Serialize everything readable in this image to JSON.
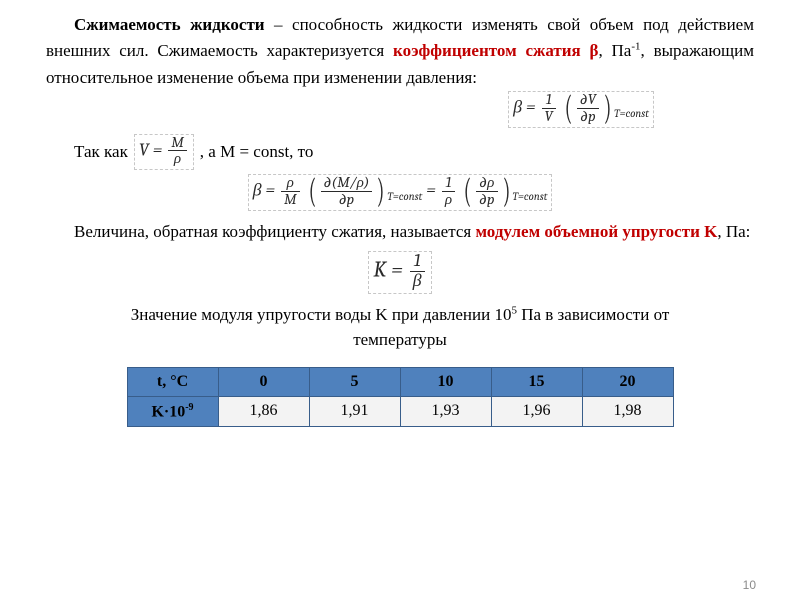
{
  "paragraph1": {
    "t1": "Сжимаемость жидкости",
    "t2": " – способность жидкости изменять свой объем под действием внешних сил. Сжимаемость характеризуется ",
    "t3": "коэффициентом сжатия β",
    "t4": ",  Па",
    "t5": ", выражающим относительное изменение объема при изменении давления:",
    "sup": "-1"
  },
  "eq1": {
    "beta": "β =",
    "frac1_num": "1",
    "frac1_den": "V",
    "pd_num": "∂V",
    "pd_den": "∂p",
    "sub": "T=const"
  },
  "line2": {
    "t1": "Так как",
    "eq_v": "V = ",
    "vnum": "M",
    "vden": "ρ",
    "t2": ", а M = const, то"
  },
  "eq2": {
    "lhs_beta": "β =",
    "f1_num": "ρ",
    "f1_den": "M",
    "pd1_num": "∂(M/ρ)",
    "pd1_den": "∂p",
    "eqsign": " = ",
    "f2_num": "1",
    "f2_den": "ρ",
    "pd2_num": "∂ρ",
    "pd2_den": "∂p",
    "sub": "T=const"
  },
  "paragraph2": {
    "t1": "Величина, обратная коэффициенту сжатия, называется ",
    "t2": "модулем объемной упругости  K",
    "t3": ", Па:"
  },
  "eq3": {
    "lhs": "K =",
    "num": "1",
    "den": "β"
  },
  "caption": {
    "t1": "Значение модуля упругости воды K при давлении 10",
    "sup": "5",
    "t2": " Па в зависимости от температуры"
  },
  "table": {
    "header_label": "t, °C",
    "row_label": "K·10",
    "row_label_sup": "-9",
    "columns": [
      "0",
      "5",
      "10",
      "15",
      "20"
    ],
    "values": [
      "1,86",
      "1,91",
      "1,93",
      "1,96",
      "1,98"
    ],
    "header_bg": "#4f81bd",
    "cell_bg": "#f3f3f3",
    "border_color": "#385d8a"
  },
  "pagenum": "10"
}
